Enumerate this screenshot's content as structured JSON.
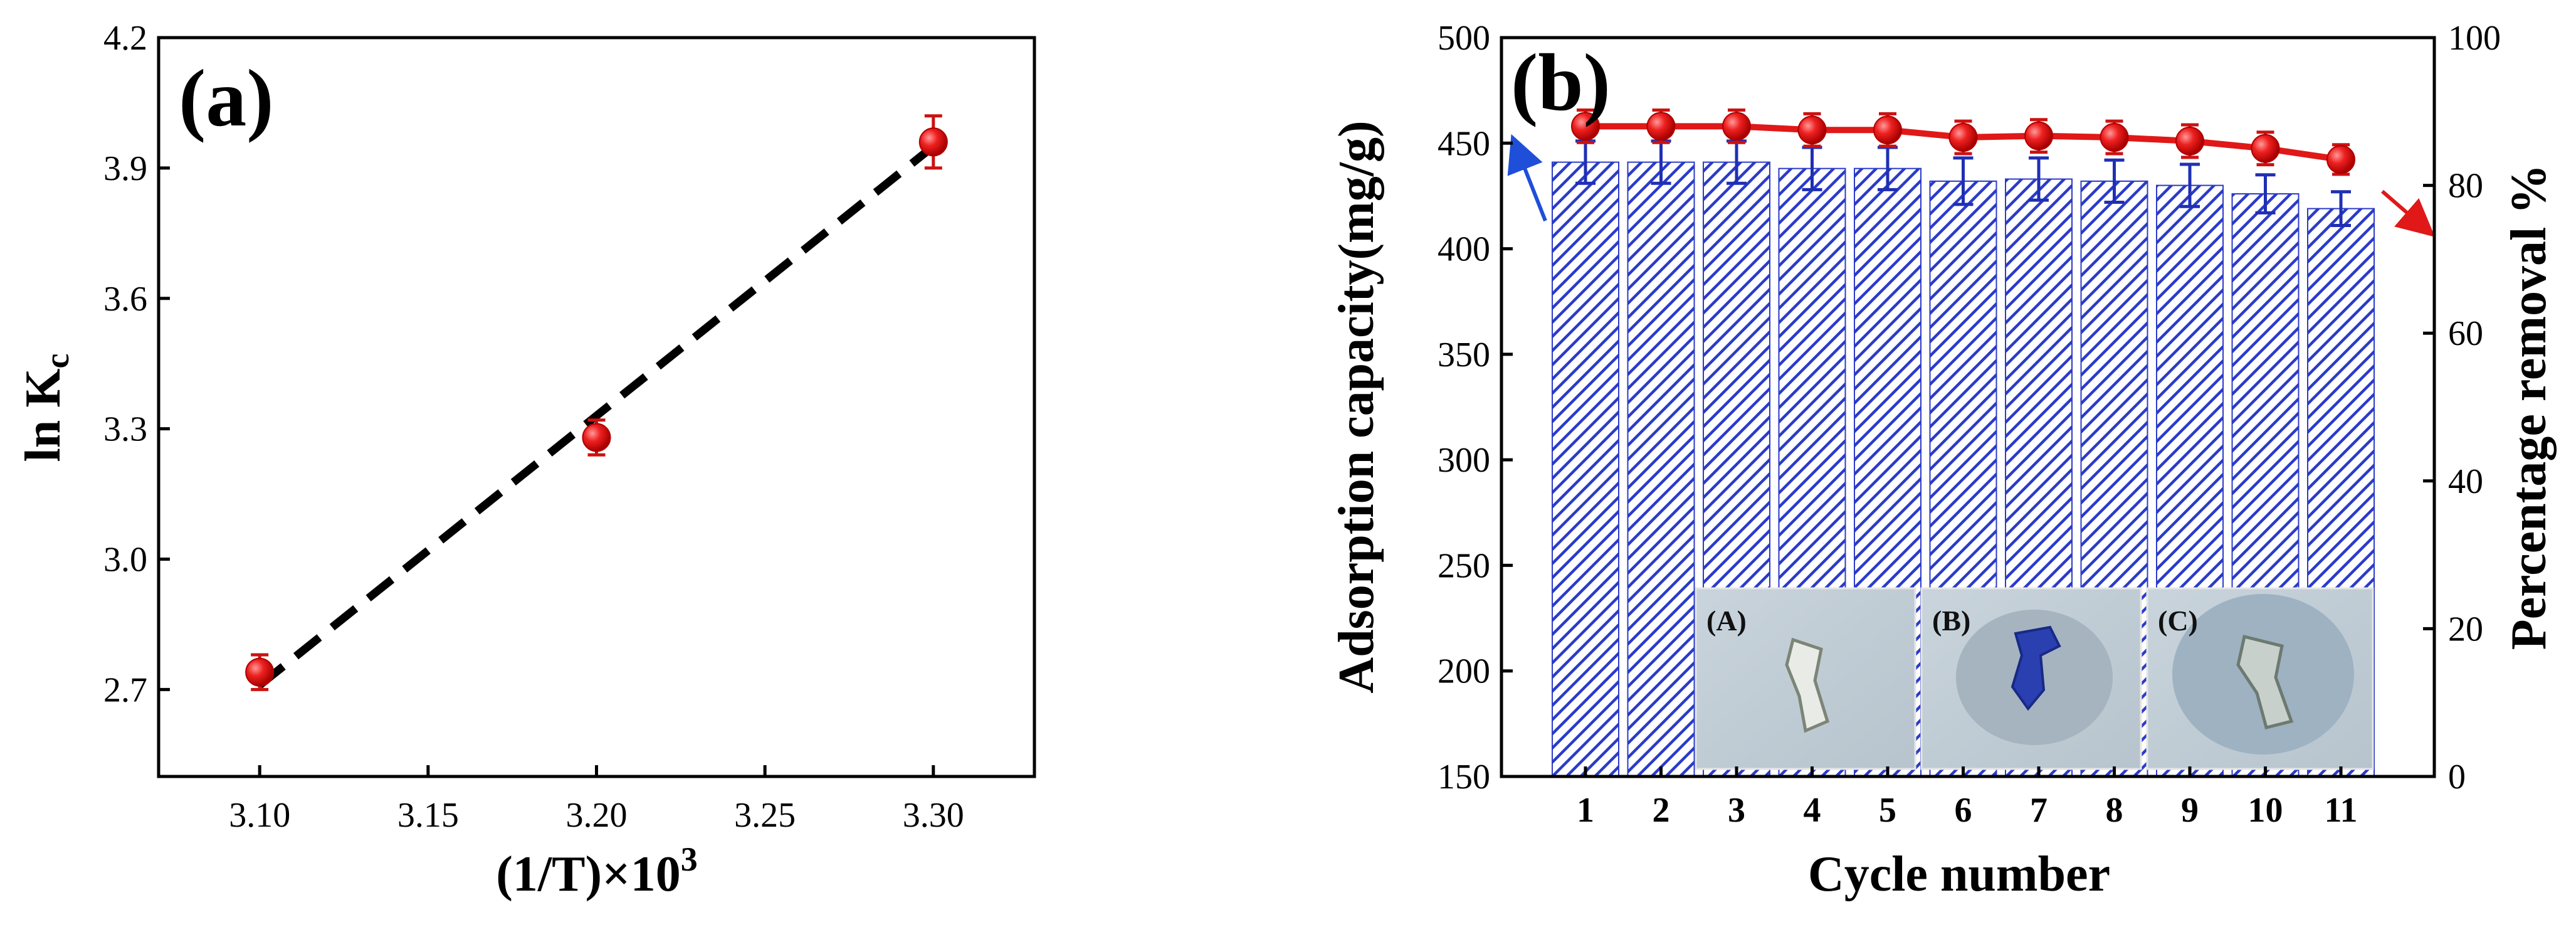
{
  "chart_data": [
    {
      "panel": "(a)",
      "type": "scatter",
      "xlabel": "(1/T)×10",
      "xlabel_sup": "3",
      "ylabel": "ln K",
      "ylabel_sub": "c",
      "xlim": [
        3.07,
        3.33
      ],
      "ylim": [
        2.5,
        4.2
      ],
      "xticks": [
        "3.10",
        "3.15",
        "3.20",
        "3.25",
        "3.30"
      ],
      "yticks": [
        "2.7",
        "3.0",
        "3.3",
        "3.6",
        "3.9",
        "4.2"
      ],
      "points": [
        {
          "x": 3.1,
          "y": 2.74,
          "err": 0.04
        },
        {
          "x": 3.2,
          "y": 3.28,
          "err": 0.04
        },
        {
          "x": 3.3,
          "y": 3.96,
          "err": 0.06
        }
      ],
      "fit_line": {
        "x": [
          3.1,
          3.3
        ],
        "y": [
          2.71,
          3.95
        ],
        "style": "dashed"
      },
      "colors": {
        "points": "#e01818",
        "fit": "#000000"
      }
    },
    {
      "panel": "(b)",
      "type": "bar",
      "xlabel": "Cycle number",
      "ylabel": "Adsorption capacity(mg/g)",
      "y2label": "Percentage removal %",
      "categories": [
        "1",
        "2",
        "3",
        "4",
        "5",
        "6",
        "7",
        "8",
        "9",
        "10",
        "11"
      ],
      "ylim": [
        150,
        500
      ],
      "y2lim": [
        0,
        100
      ],
      "yticks": [
        "150",
        "200",
        "250",
        "300",
        "350",
        "400",
        "450",
        "500"
      ],
      "y2ticks": [
        "0",
        "20",
        "40",
        "60",
        "80",
        "100"
      ],
      "series": [
        {
          "name": "Adsorption capacity",
          "axis": "left",
          "kind": "bar",
          "values": [
            441,
            441,
            441,
            438,
            438,
            432,
            433,
            432,
            430,
            426,
            419
          ],
          "errors": [
            10,
            10,
            10,
            10,
            10,
            11,
            10,
            10,
            10,
            9,
            8
          ]
        },
        {
          "name": "Percentage removal",
          "axis": "right",
          "kind": "line",
          "values": [
            88,
            88,
            88,
            87.5,
            87.5,
            86.5,
            86.7,
            86.5,
            86,
            85,
            83.5
          ],
          "errors": [
            2.2,
            2.2,
            2.2,
            2.2,
            2.2,
            2.2,
            2.2,
            2.2,
            2.2,
            2.2,
            2.0
          ]
        }
      ],
      "inset_labels": [
        "(A)",
        "(B)",
        "(C)"
      ],
      "colors": {
        "bars": "#2b3bc8",
        "bar_bg": "#ffffff",
        "line": "#e01818",
        "arrow_left": "#1f4fd8",
        "arrow_right": "#e01818"
      }
    }
  ]
}
